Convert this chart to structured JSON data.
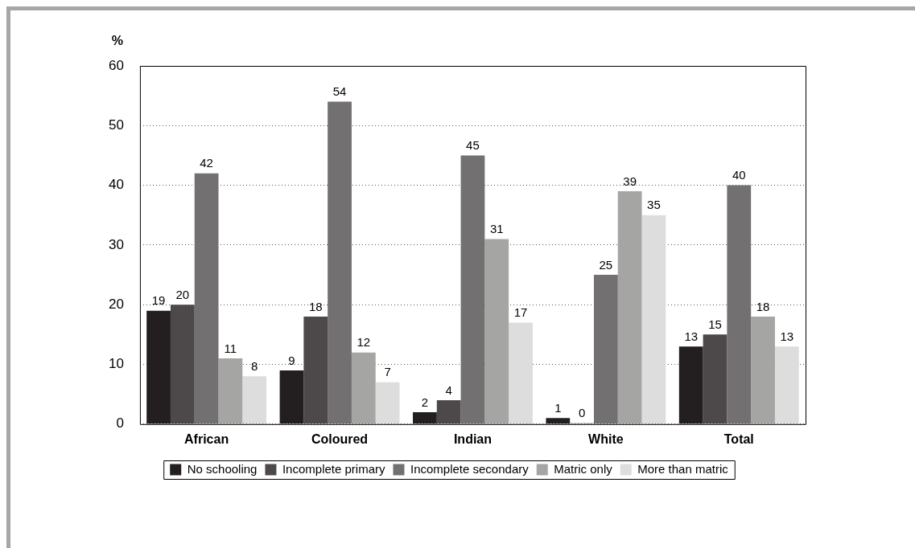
{
  "chart_data": {
    "type": "bar",
    "ylabel": "%",
    "categories": [
      "African",
      "Coloured",
      "Indian",
      "White",
      "Total"
    ],
    "series": [
      {
        "name": "No schooling",
        "color": "#231f20",
        "values": [
          19,
          9,
          2,
          1,
          13
        ]
      },
      {
        "name": "Incomplete primary",
        "color": "#4d4849",
        "values": [
          20,
          18,
          4,
          0,
          15
        ]
      },
      {
        "name": "Incomplete secondary",
        "color": "#727070",
        "values": [
          42,
          54,
          45,
          25,
          40
        ]
      },
      {
        "name": "Matric only",
        "color": "#a5a5a3",
        "values": [
          11,
          12,
          31,
          39,
          18
        ]
      },
      {
        "name": "More than matric",
        "color": "#dddddd",
        "values": [
          8,
          7,
          17,
          35,
          13
        ]
      }
    ],
    "ylim": [
      0,
      60
    ],
    "yticks": [
      0,
      10,
      20,
      30,
      40,
      50,
      60
    ],
    "grid": "y",
    "legend": "bottom",
    "data_labels": true
  }
}
